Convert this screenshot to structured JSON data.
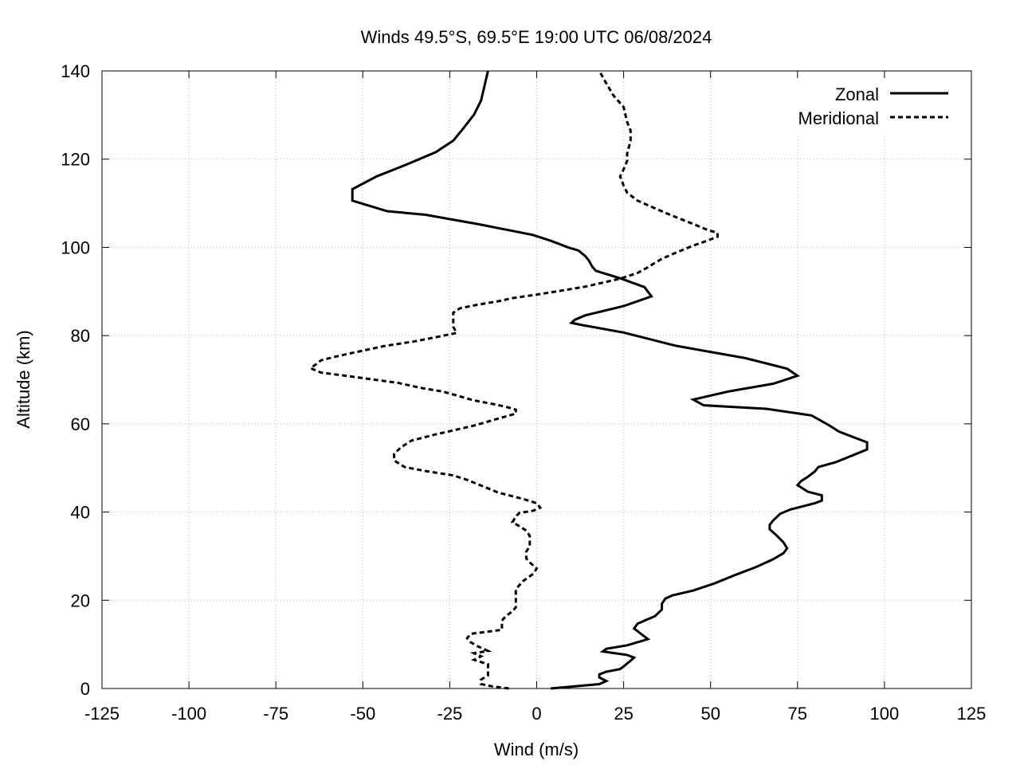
{
  "chart_data": {
    "type": "line",
    "title": "Winds 49.5°S, 69.5°E 19:00 UTC 06/08/2024",
    "xlabel": "Wind (m/s)",
    "ylabel": "Altitude (km)",
    "xlim": [
      -125,
      125
    ],
    "ylim": [
      0,
      140
    ],
    "x_ticks": [
      "-125",
      "-100",
      "-75",
      "-50",
      "-25",
      "0",
      "25",
      "50",
      "75",
      "100",
      "125"
    ],
    "y_ticks": [
      "0",
      "20",
      "40",
      "60",
      "80",
      "100",
      "120",
      "140"
    ],
    "grid": true,
    "legend_position": "top-right",
    "series": [
      {
        "name": "Zonal",
        "style": "solid",
        "color": "#000000",
        "points": [
          [
            4,
            0
          ],
          [
            18,
            1
          ],
          [
            20,
            1.7
          ],
          [
            18,
            2.5
          ],
          [
            18,
            3.2
          ],
          [
            20,
            3.8
          ],
          [
            24,
            4.4
          ],
          [
            25,
            5
          ],
          [
            27,
            6.3
          ],
          [
            28,
            7
          ],
          [
            26,
            7.6
          ],
          [
            19,
            8.4
          ],
          [
            20,
            9
          ],
          [
            26,
            9.8
          ],
          [
            32,
            11.2
          ],
          [
            30,
            12.4
          ],
          [
            28,
            13.6
          ],
          [
            29,
            14.7
          ],
          [
            34,
            16.4
          ],
          [
            36,
            17.9
          ],
          [
            36,
            19.2
          ],
          [
            37,
            20.4
          ],
          [
            39,
            21.1
          ],
          [
            45,
            22.2
          ],
          [
            51,
            23.8
          ],
          [
            57,
            25.7
          ],
          [
            63,
            27.5
          ],
          [
            68,
            29.3
          ],
          [
            71,
            30.7
          ],
          [
            72,
            31.8
          ],
          [
            71,
            33.1
          ],
          [
            69,
            34.7
          ],
          [
            67,
            36.1
          ],
          [
            67,
            37.1
          ],
          [
            68,
            38.1
          ],
          [
            70,
            39.6
          ],
          [
            73,
            40.6
          ],
          [
            80,
            42
          ],
          [
            82,
            42.6
          ],
          [
            82,
            43.8
          ],
          [
            78,
            44.6
          ],
          [
            75,
            46.1
          ],
          [
            76,
            47
          ],
          [
            78,
            48
          ],
          [
            80,
            49.2
          ],
          [
            81,
            50.2
          ],
          [
            86,
            51.3
          ],
          [
            91,
            52.9
          ],
          [
            95,
            54.2
          ],
          [
            95,
            55.8
          ],
          [
            87,
            58.2
          ],
          [
            84,
            59.7
          ],
          [
            79,
            61.9
          ],
          [
            66,
            63.4
          ],
          [
            48,
            64.2
          ],
          [
            45,
            65.5
          ],
          [
            55,
            67.3
          ],
          [
            68,
            69.1
          ],
          [
            75,
            70.9
          ],
          [
            72,
            72.5
          ],
          [
            60,
            74.9
          ],
          [
            40,
            77.7
          ],
          [
            25,
            80.7
          ],
          [
            13,
            82.4
          ],
          [
            10,
            82.9
          ],
          [
            11,
            83.6
          ],
          [
            14,
            84.6
          ],
          [
            25,
            86.7
          ],
          [
            33,
            88.9
          ],
          [
            31,
            91
          ],
          [
            24,
            93
          ],
          [
            17,
            94.7
          ],
          [
            16,
            95.6
          ],
          [
            15,
            97
          ],
          [
            14,
            98
          ],
          [
            12,
            99.3
          ],
          [
            9,
            100
          ],
          [
            4,
            101.5
          ],
          [
            -1,
            102.8
          ],
          [
            -17,
            105.3
          ],
          [
            -32,
            107.4
          ],
          [
            -43,
            108.2
          ],
          [
            -53,
            110.6
          ],
          [
            -53,
            113.2
          ],
          [
            -46,
            116.1
          ],
          [
            -38,
            118.6
          ],
          [
            -29,
            121.6
          ],
          [
            -24,
            124.2
          ],
          [
            -21,
            127.1
          ],
          [
            -18,
            130.1
          ],
          [
            -16,
            133.3
          ],
          [
            -15,
            136.6
          ],
          [
            -14,
            140
          ]
        ]
      },
      {
        "name": "Meridional",
        "style": "dashed",
        "color": "#000000",
        "points": [
          [
            -8,
            0
          ],
          [
            -13,
            0.5
          ],
          [
            -16,
            1
          ],
          [
            -16,
            2
          ],
          [
            -14,
            3
          ],
          [
            -14,
            4
          ],
          [
            -14,
            5.5
          ],
          [
            -18,
            6.5
          ],
          [
            -16,
            7.3
          ],
          [
            -18,
            8
          ],
          [
            -14,
            8.5
          ],
          [
            -17,
            9.6
          ],
          [
            -19,
            10.5
          ],
          [
            -20,
            11.4
          ],
          [
            -19,
            12.4
          ],
          [
            -14,
            12.9
          ],
          [
            -10,
            13.3
          ],
          [
            -10,
            14.3
          ],
          [
            -10,
            15.4
          ],
          [
            -9,
            16.3
          ],
          [
            -7,
            17.5
          ],
          [
            -6,
            18.4
          ],
          [
            -6,
            19.6
          ],
          [
            -6,
            21
          ],
          [
            -6,
            22.5
          ],
          [
            -4,
            24.3
          ],
          [
            -1,
            26
          ],
          [
            0,
            27.2
          ],
          [
            -2,
            28.6
          ],
          [
            -3,
            29.5
          ],
          [
            -3,
            31
          ],
          [
            -2,
            32.3
          ],
          [
            -2,
            33.6
          ],
          [
            -2,
            34.6
          ],
          [
            -3,
            35.8
          ],
          [
            -5,
            36.8
          ],
          [
            -7,
            37.7
          ],
          [
            -6,
            39
          ],
          [
            -5,
            39.8
          ],
          [
            -1,
            40.3
          ],
          [
            1,
            41
          ],
          [
            0,
            42
          ],
          [
            -4,
            43
          ],
          [
            -11,
            44.4
          ],
          [
            -20,
            47.3
          ],
          [
            -24,
            48.3
          ],
          [
            -32,
            49.3
          ],
          [
            -38,
            50.2
          ],
          [
            -41,
            51.7
          ],
          [
            -41,
            53.2
          ],
          [
            -39,
            54.7
          ],
          [
            -36,
            56.2
          ],
          [
            -29,
            57.6
          ],
          [
            -18,
            59.6
          ],
          [
            -11,
            61.2
          ],
          [
            -6,
            62.3
          ],
          [
            -6,
            63.2
          ],
          [
            -9,
            63.9
          ],
          [
            -12,
            64.4
          ],
          [
            -18,
            65.3
          ],
          [
            -22,
            66.2
          ],
          [
            -27,
            67.3
          ],
          [
            -33,
            68.1
          ],
          [
            -40,
            69.3
          ],
          [
            -55,
            70.9
          ],
          [
            -62,
            71.6
          ],
          [
            -65,
            72.6
          ],
          [
            -63,
            73.8
          ],
          [
            -62,
            74.4
          ],
          [
            -58,
            75.2
          ],
          [
            -54,
            75.9
          ],
          [
            -44,
            77.6
          ],
          [
            -35,
            78.7
          ],
          [
            -28,
            79.8
          ],
          [
            -23,
            80.6
          ],
          [
            -24,
            82
          ],
          [
            -24,
            83.8
          ],
          [
            -24,
            85.2
          ],
          [
            -22,
            86.2
          ],
          [
            -17,
            87
          ],
          [
            -11,
            87.8
          ],
          [
            -7,
            88.5
          ],
          [
            0,
            89.3
          ],
          [
            8,
            90.3
          ],
          [
            14,
            91.1
          ],
          [
            24,
            92.9
          ],
          [
            29,
            94.2
          ],
          [
            32,
            95.5
          ],
          [
            34,
            96.5
          ],
          [
            36,
            97.4
          ],
          [
            40,
            98.8
          ],
          [
            45,
            100.4
          ],
          [
            49,
            101.5
          ],
          [
            52,
            102.4
          ],
          [
            52,
            103.3
          ],
          [
            49,
            104
          ],
          [
            45,
            105.3
          ],
          [
            38,
            107.5
          ],
          [
            33,
            109.2
          ],
          [
            29,
            110.6
          ],
          [
            26,
            112.4
          ],
          [
            25,
            114
          ],
          [
            24,
            116.1
          ],
          [
            25,
            117.7
          ],
          [
            26,
            119.6
          ],
          [
            26,
            121.3
          ],
          [
            27,
            124.1
          ],
          [
            27,
            126.5
          ],
          [
            26,
            128.4
          ],
          [
            25,
            131.8
          ],
          [
            22,
            134.5
          ],
          [
            20,
            137.2
          ],
          [
            18,
            140
          ]
        ]
      }
    ]
  }
}
